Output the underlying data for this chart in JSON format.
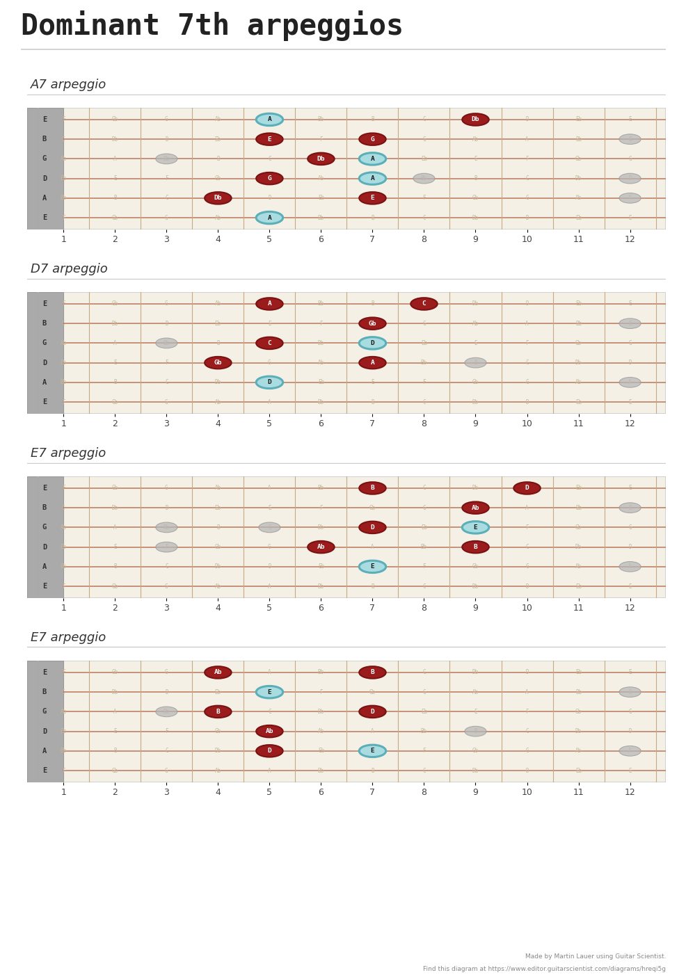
{
  "title": "Dominant 7th arpeggios",
  "title_fontsize": 30,
  "bg_color": "#ffffff",
  "fretboard_bg": "#f5f0e6",
  "string_color": "#b8785a",
  "fret_color": "#c8a882",
  "nut_color": "#999999",
  "dot_red": "#9b1c1c",
  "dot_red_border": "#7a1212",
  "dot_cyan_fill": "#a8dce0",
  "dot_cyan_border": "#5aafb8",
  "dot_gray": "#b8b8b8",
  "dot_gray_border": "#999999",
  "note_names_color": "#c8b89a",
  "string_label_bg": "#aaaaaa",
  "string_labels": [
    "E",
    "B",
    "G",
    "D",
    "A",
    "E"
  ],
  "num_frets": 12,
  "num_strings": 6,
  "note_grid": {
    "0": [
      "F",
      "Gb",
      "G",
      "Ab",
      "A",
      "Bb",
      "B",
      "C",
      "Db",
      "D",
      "Eb",
      "E"
    ],
    "1": [
      "C",
      "Db",
      "D",
      "Eb",
      "E",
      "F",
      "Gb",
      "G",
      "Ab",
      "A",
      "Bb",
      "B"
    ],
    "2": [
      "Ab",
      "A",
      "Bb",
      "B",
      "C",
      "Db",
      "D",
      "Eb",
      "E",
      "F",
      "Gb",
      "G"
    ],
    "3": [
      "Eb",
      "E",
      "F",
      "Gb",
      "G",
      "Ab",
      "A",
      "Bb",
      "B",
      "C",
      "Db",
      "D"
    ],
    "4": [
      "Bb",
      "B",
      "C",
      "Db",
      "D",
      "Eb",
      "E",
      "F",
      "Gb",
      "G",
      "Ab",
      "A"
    ],
    "5": [
      "F",
      "Gb",
      "G",
      "Ab",
      "A",
      "Bb",
      "B",
      "C",
      "Db",
      "D",
      "Eb",
      "E"
    ]
  },
  "diagrams": [
    {
      "title": "A7 arpeggio",
      "notes": [
        {
          "string": 0,
          "fret": 5,
          "label": "A",
          "type": "cyan"
        },
        {
          "string": 0,
          "fret": 9,
          "label": "Db",
          "type": "red"
        },
        {
          "string": 1,
          "fret": 5,
          "label": "E",
          "type": "red"
        },
        {
          "string": 1,
          "fret": 7,
          "label": "G",
          "type": "red"
        },
        {
          "string": 2,
          "fret": 6,
          "label": "Db",
          "type": "red"
        },
        {
          "string": 2,
          "fret": 7,
          "label": "A",
          "type": "cyan"
        },
        {
          "string": 3,
          "fret": 5,
          "label": "G",
          "type": "red"
        },
        {
          "string": 3,
          "fret": 7,
          "label": "A",
          "type": "cyan"
        },
        {
          "string": 4,
          "fret": 4,
          "label": "Db",
          "type": "red"
        },
        {
          "string": 4,
          "fret": 7,
          "label": "E",
          "type": "red"
        },
        {
          "string": 5,
          "fret": 5,
          "label": "A",
          "type": "cyan"
        },
        {
          "string": 1,
          "fret": 12,
          "label": "",
          "type": "gray"
        },
        {
          "string": 2,
          "fret": 3,
          "label": "",
          "type": "gray"
        },
        {
          "string": 3,
          "fret": 8,
          "label": "",
          "type": "gray"
        },
        {
          "string": 3,
          "fret": 12,
          "label": "",
          "type": "gray"
        },
        {
          "string": 4,
          "fret": 12,
          "label": "",
          "type": "gray"
        }
      ]
    },
    {
      "title": "D7 arpeggio",
      "notes": [
        {
          "string": 0,
          "fret": 5,
          "label": "A",
          "type": "red"
        },
        {
          "string": 0,
          "fret": 8,
          "label": "C",
          "type": "red"
        },
        {
          "string": 1,
          "fret": 7,
          "label": "Gb",
          "type": "red"
        },
        {
          "string": 2,
          "fret": 5,
          "label": "C",
          "type": "red"
        },
        {
          "string": 2,
          "fret": 7,
          "label": "D",
          "type": "cyan"
        },
        {
          "string": 3,
          "fret": 4,
          "label": "Gb",
          "type": "red"
        },
        {
          "string": 3,
          "fret": 7,
          "label": "A",
          "type": "red"
        },
        {
          "string": 4,
          "fret": 5,
          "label": "D",
          "type": "cyan"
        },
        {
          "string": 2,
          "fret": 3,
          "label": "",
          "type": "gray"
        },
        {
          "string": 3,
          "fret": 9,
          "label": "",
          "type": "gray"
        },
        {
          "string": 1,
          "fret": 12,
          "label": "",
          "type": "gray"
        },
        {
          "string": 4,
          "fret": 12,
          "label": "",
          "type": "gray"
        }
      ]
    },
    {
      "title": "E7 arpeggio",
      "notes": [
        {
          "string": 0,
          "fret": 7,
          "label": "B",
          "type": "red"
        },
        {
          "string": 0,
          "fret": 10,
          "label": "D",
          "type": "red"
        },
        {
          "string": 1,
          "fret": 9,
          "label": "Ab",
          "type": "red"
        },
        {
          "string": 2,
          "fret": 7,
          "label": "D",
          "type": "red"
        },
        {
          "string": 2,
          "fret": 9,
          "label": "E",
          "type": "cyan"
        },
        {
          "string": 3,
          "fret": 6,
          "label": "Ab",
          "type": "red"
        },
        {
          "string": 3,
          "fret": 9,
          "label": "B",
          "type": "red"
        },
        {
          "string": 4,
          "fret": 7,
          "label": "E",
          "type": "cyan"
        },
        {
          "string": 2,
          "fret": 3,
          "label": "",
          "type": "gray"
        },
        {
          "string": 2,
          "fret": 5,
          "label": "",
          "type": "gray"
        },
        {
          "string": 3,
          "fret": 3,
          "label": "",
          "type": "gray"
        },
        {
          "string": 1,
          "fret": 12,
          "label": "",
          "type": "gray"
        },
        {
          "string": 4,
          "fret": 12,
          "label": "",
          "type": "gray"
        }
      ]
    },
    {
      "title": "E7 arpeggio",
      "notes": [
        {
          "string": 0,
          "fret": 4,
          "label": "Ab",
          "type": "red"
        },
        {
          "string": 0,
          "fret": 7,
          "label": "B",
          "type": "red"
        },
        {
          "string": 1,
          "fret": 5,
          "label": "E",
          "type": "cyan"
        },
        {
          "string": 2,
          "fret": 4,
          "label": "B",
          "type": "red"
        },
        {
          "string": 2,
          "fret": 7,
          "label": "D",
          "type": "red"
        },
        {
          "string": 3,
          "fret": 5,
          "label": "Ab",
          "type": "red"
        },
        {
          "string": 4,
          "fret": 5,
          "label": "D",
          "type": "red"
        },
        {
          "string": 4,
          "fret": 7,
          "label": "E",
          "type": "cyan"
        },
        {
          "string": 2,
          "fret": 3,
          "label": "",
          "type": "gray"
        },
        {
          "string": 3,
          "fret": 9,
          "label": "",
          "type": "gray"
        },
        {
          "string": 1,
          "fret": 12,
          "label": "",
          "type": "gray"
        },
        {
          "string": 4,
          "fret": 12,
          "label": "",
          "type": "gray"
        }
      ]
    }
  ],
  "footer_line1": "Made by Martin Lauer using Guitar Scientist.",
  "footer_line2": "Find this diagram at https://www.editor.guitarscientist.com/diagrams/hreqi5g"
}
